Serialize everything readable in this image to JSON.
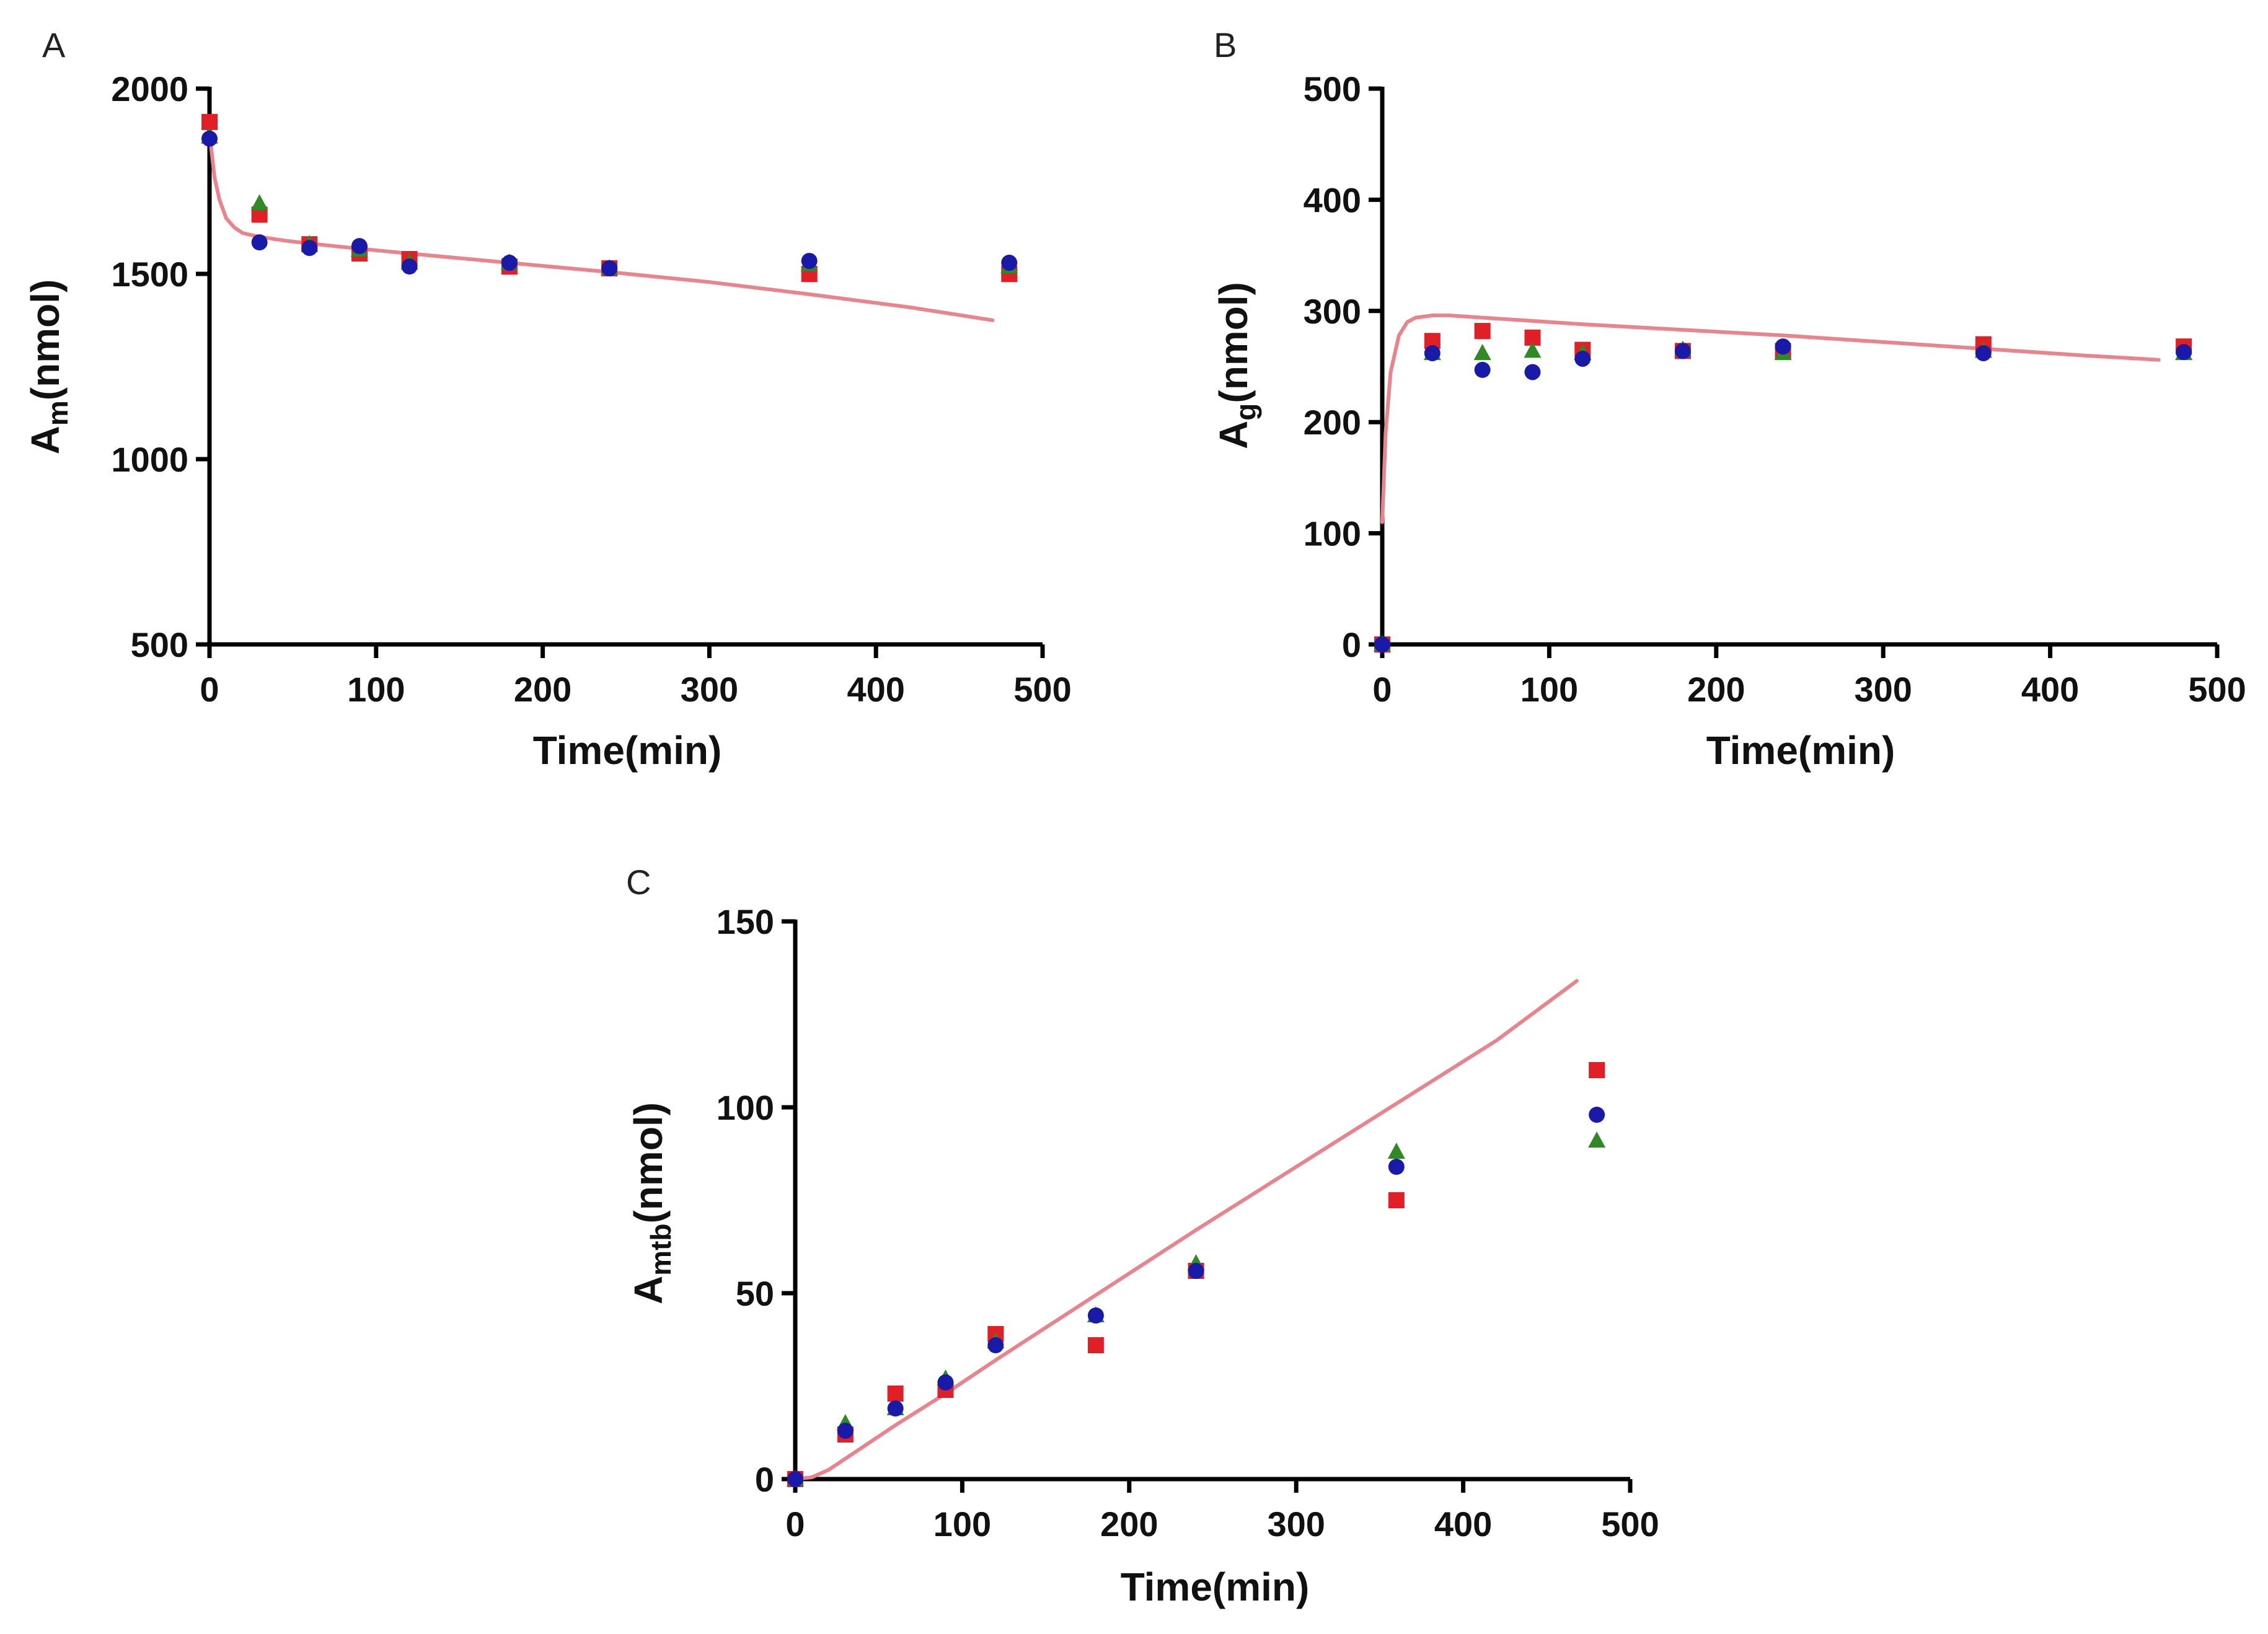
{
  "figure": {
    "colors": {
      "axis": "#000000",
      "model": "#e9848c",
      "red_squares": "#e11f26",
      "blue_circles": "#1a1aa8",
      "green_triangles": "#2f8a25"
    },
    "series_markers": [
      "square",
      "circle",
      "triangle"
    ]
  },
  "chart_data": [
    {
      "id": "A",
      "type": "scatter",
      "panel_label": "A",
      "xlabel": "Time(min)",
      "ylabel_main": "A",
      "ylabel_sub": "m",
      "ylabel_suffix": "(nmol)",
      "xlim": [
        0,
        500
      ],
      "ylim": [
        500,
        2000
      ],
      "xticks": [
        "0",
        "100",
        "200",
        "300",
        "400",
        "500"
      ],
      "yticks": [
        "500",
        "1000",
        "1500",
        "2000"
      ],
      "xtick_values": [
        0,
        100,
        200,
        300,
        400,
        500
      ],
      "ytick_values": [
        500,
        1000,
        1500,
        2000
      ],
      "series": [
        {
          "name": "red-squares",
          "marker": "square",
          "color": "#e11f26",
          "x": [
            0,
            30,
            60,
            90,
            120,
            180,
            240,
            360,
            480
          ],
          "y": [
            1910,
            1660,
            1580,
            1555,
            1540,
            1520,
            1515,
            1500,
            1500
          ]
        },
        {
          "name": "green-triangles",
          "marker": "triangle",
          "color": "#2f8a25",
          "x": [
            0,
            30,
            60,
            90,
            120,
            180,
            240,
            360,
            480
          ],
          "y": [
            1870,
            1690,
            1580,
            1565,
            1530,
            1530,
            1515,
            1525,
            1520
          ]
        },
        {
          "name": "blue-circles",
          "marker": "circle",
          "color": "#1a1aa8",
          "x": [
            0,
            30,
            60,
            90,
            120,
            180,
            240,
            360,
            480
          ],
          "y": [
            1865,
            1585,
            1570,
            1575,
            1520,
            1530,
            1515,
            1535,
            1530
          ]
        }
      ],
      "model": {
        "name": "model-curve",
        "color": "#e9848c",
        "x": [
          0,
          3,
          6,
          10,
          15,
          20,
          30,
          45,
          60,
          90,
          120,
          180,
          240,
          300,
          360,
          420,
          470
        ],
        "y": [
          1880,
          1760,
          1700,
          1650,
          1625,
          1610,
          1600,
          1590,
          1582,
          1568,
          1555,
          1530,
          1505,
          1478,
          1445,
          1410,
          1375
        ]
      }
    },
    {
      "id": "B",
      "type": "scatter",
      "panel_label": "B",
      "xlabel": "Time(min)",
      "ylabel_main": "A",
      "ylabel_sub": "g",
      "ylabel_suffix": "(nmol)",
      "xlim": [
        0,
        500
      ],
      "ylim": [
        0,
        500
      ],
      "xticks": [
        "0",
        "100",
        "200",
        "300",
        "400",
        "500"
      ],
      "yticks": [
        "0",
        "100",
        "200",
        "300",
        "400",
        "500"
      ],
      "xtick_values": [
        0,
        100,
        200,
        300,
        400,
        500
      ],
      "ytick_values": [
        0,
        100,
        200,
        300,
        400,
        500
      ],
      "series": [
        {
          "name": "red-squares",
          "marker": "square",
          "color": "#e11f26",
          "x": [
            0,
            30,
            60,
            90,
            120,
            180,
            240,
            360,
            480
          ],
          "y": [
            0,
            273,
            282,
            276,
            265,
            264,
            264,
            270,
            268
          ]
        },
        {
          "name": "green-triangles",
          "marker": "triangle",
          "color": "#2f8a25",
          "x": [
            0,
            30,
            60,
            90,
            120,
            180,
            240,
            360,
            480
          ],
          "y": [
            0,
            262,
            262,
            264,
            262,
            265,
            262,
            264,
            262
          ]
        },
        {
          "name": "blue-circles",
          "marker": "circle",
          "color": "#1a1aa8",
          "x": [
            0,
            30,
            60,
            90,
            120,
            180,
            240,
            360,
            480
          ],
          "y": [
            0,
            262,
            247,
            245,
            257,
            264,
            268,
            262,
            263
          ]
        }
      ],
      "model": {
        "name": "model-curve",
        "color": "#e9848c",
        "x": [
          0,
          2,
          5,
          10,
          15,
          20,
          30,
          40,
          60,
          90,
          120,
          180,
          240,
          300,
          360,
          420,
          465
        ],
        "y": [
          110,
          190,
          245,
          278,
          290,
          294,
          296,
          296,
          294,
          291,
          288,
          283,
          278,
          272,
          266,
          260,
          256
        ]
      }
    },
    {
      "id": "C",
      "type": "scatter",
      "panel_label": "C",
      "xlabel": "Time(min)",
      "ylabel_main": "A",
      "ylabel_sub": "mtb",
      "ylabel_suffix": "(nmol)",
      "xlim": [
        0,
        500
      ],
      "ylim": [
        0,
        150
      ],
      "xticks": [
        "0",
        "100",
        "200",
        "300",
        "400",
        "500"
      ],
      "yticks": [
        "0",
        "50",
        "100",
        "150"
      ],
      "xtick_values": [
        0,
        100,
        200,
        300,
        400,
        500
      ],
      "ytick_values": [
        0,
        50,
        100,
        150
      ],
      "series": [
        {
          "name": "red-squares",
          "marker": "square",
          "color": "#e11f26",
          "x": [
            0,
            30,
            60,
            90,
            120,
            180,
            240,
            360,
            480
          ],
          "y": [
            0,
            12,
            23,
            24,
            39,
            36,
            56,
            75,
            110
          ]
        },
        {
          "name": "green-triangles",
          "marker": "triangle",
          "color": "#2f8a25",
          "x": [
            0,
            30,
            60,
            90,
            120,
            180,
            240,
            360,
            480
          ],
          "y": [
            0,
            15,
            19,
            27,
            37,
            44,
            58,
            88,
            91
          ]
        },
        {
          "name": "blue-circles",
          "marker": "circle",
          "color": "#1a1aa8",
          "x": [
            0,
            30,
            60,
            90,
            120,
            180,
            240,
            360,
            480
          ],
          "y": [
            0,
            13,
            19,
            26,
            36,
            44,
            56,
            84,
            98
          ]
        }
      ],
      "model": {
        "name": "model-curve",
        "color": "#e9848c",
        "x": [
          0,
          10,
          20,
          40,
          60,
          90,
          120,
          180,
          240,
          300,
          360,
          420,
          468
        ],
        "y": [
          0,
          0.5,
          2.5,
          8.5,
          14.5,
          23,
          32,
          49.5,
          67,
          84,
          101,
          118,
          134
        ]
      }
    }
  ]
}
